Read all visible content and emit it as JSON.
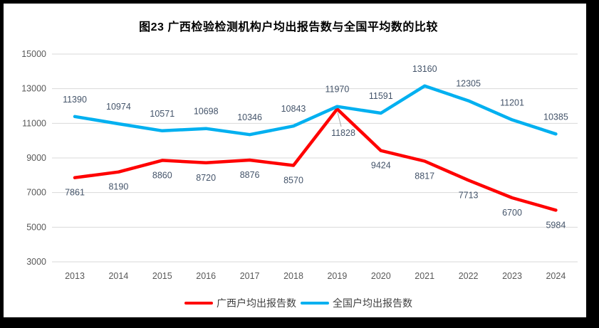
{
  "chart_data": {
    "type": "line",
    "title": "图23 广西检验检测机构户均出报告数与全国平均数的比较",
    "categories": [
      "2013",
      "2014",
      "2015",
      "2016",
      "2017",
      "2018",
      "2019",
      "2020",
      "2021",
      "2022",
      "2023",
      "2024"
    ],
    "series": [
      {
        "name": "广西户均出报告数",
        "color": "#FF0000",
        "values": [
          7861,
          8190,
          8860,
          8720,
          8876,
          8570,
          11828,
          9424,
          8817,
          7713,
          6700,
          5984
        ],
        "label_position": "below"
      },
      {
        "name": "全国户均出报告数",
        "color": "#00B0F0",
        "values": [
          11390,
          10974,
          10571,
          10698,
          10346,
          10843,
          11970,
          11591,
          13160,
          12305,
          11201,
          10385
        ],
        "label_position": "above"
      }
    ],
    "xlabel": "",
    "ylabel": "",
    "ylim": [
      3000,
      15000
    ],
    "y_ticks": [
      3000,
      5000,
      7000,
      9000,
      11000,
      13000,
      15000
    ],
    "grid": true,
    "legend_position": "bottom",
    "colors": {
      "gridline": "#D9D9D9",
      "axis_label": "#595959",
      "data_label": "#44546A",
      "leader_line": "#A6A6A6",
      "frame": "#000000",
      "background": "#FFFFFF"
    }
  }
}
